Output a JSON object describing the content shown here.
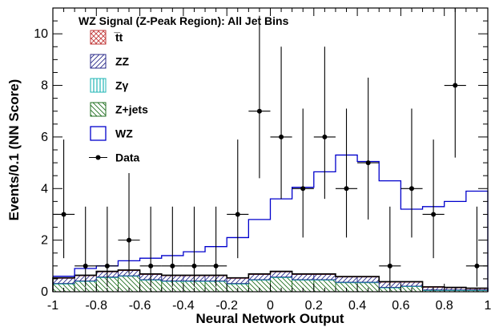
{
  "chart_data": {
    "type": "histogram",
    "title": "WZ Signal (Z-Peak Region): All Jet Bins",
    "xlabel": "Neural Network Output",
    "ylabel": "Events/0.1 (NN Score)",
    "xlim": [
      -1,
      1
    ],
    "ylim": [
      0,
      11
    ],
    "x_ticks": [
      "-1",
      "-0.8",
      "-0.6",
      "-0.4",
      "-0.2",
      "0",
      "0.2",
      "0.4",
      "0.6",
      "0.8",
      "1"
    ],
    "y_ticks": [
      "0",
      "2",
      "4",
      "6",
      "8",
      "10"
    ],
    "bin_width": 0.1,
    "bin_edges": [
      -1.0,
      -0.9,
      -0.8,
      -0.7,
      -0.6,
      -0.5,
      -0.4,
      -0.3,
      -0.2,
      -0.1,
      0.0,
      0.1,
      0.2,
      0.3,
      0.4,
      0.5,
      0.6,
      0.7,
      0.8,
      0.9,
      1.0
    ],
    "stacked_series": [
      {
        "name": "Z+jets",
        "color": "#1f6e1f",
        "hatch": "diag-left",
        "values": [
          0.3,
          0.4,
          0.55,
          0.6,
          0.45,
          0.4,
          0.4,
          0.4,
          0.3,
          0.45,
          0.55,
          0.45,
          0.45,
          0.35,
          0.35,
          0.15,
          0.2,
          0.05,
          0.05,
          0.05
        ]
      },
      {
        "name": "Zγ",
        "color": "#1fb5b5",
        "hatch": "vertical",
        "values": [
          0.02,
          0.02,
          0.02,
          0.02,
          0.02,
          0.02,
          0.02,
          0.02,
          0.02,
          0.02,
          0.02,
          0.02,
          0.02,
          0.02,
          0.02,
          0.02,
          0.02,
          0.02,
          0.02,
          0.02
        ]
      },
      {
        "name": "ZZ",
        "color": "#2a2a8a",
        "hatch": "diag-right",
        "values": [
          0.2,
          0.2,
          0.2,
          0.2,
          0.2,
          0.2,
          0.2,
          0.2,
          0.2,
          0.2,
          0.2,
          0.2,
          0.2,
          0.2,
          0.2,
          0.2,
          0.15,
          0.1,
          0.08,
          0.05
        ]
      },
      {
        "name": "t̅t",
        "color": "#c23a3a",
        "hatch": "cross",
        "values": [
          0.02,
          0.02,
          0.02,
          0.02,
          0.02,
          0.02,
          0.02,
          0.02,
          0.02,
          0.02,
          0.02,
          0.02,
          0.02,
          0.02,
          0.02,
          0.02,
          0.02,
          0.02,
          0.02,
          0.02
        ]
      }
    ],
    "signal_series": {
      "name": "WZ",
      "color": "#0000cc",
      "values": [
        0.6,
        0.9,
        1.0,
        1.2,
        1.3,
        1.4,
        1.55,
        1.75,
        2.1,
        2.8,
        3.6,
        4.05,
        4.65,
        5.3,
        5.05,
        4.3,
        3.2,
        3.3,
        3.5,
        3.9
      ]
    },
    "data_series": {
      "name": "Data",
      "x": [
        -0.95,
        -0.85,
        -0.75,
        -0.65,
        -0.55,
        -0.45,
        -0.35,
        -0.25,
        -0.15,
        -0.05,
        0.05,
        0.15,
        0.25,
        0.35,
        0.45,
        0.55,
        0.65,
        0.75,
        0.85,
        0.95
      ],
      "y": [
        3,
        1,
        1,
        2,
        1,
        1,
        1,
        1,
        3,
        7,
        6,
        4,
        6,
        4,
        5,
        1,
        4,
        3,
        8,
        1
      ],
      "err_low": [
        1.7,
        0.8,
        0.8,
        1.3,
        0.8,
        0.8,
        0.8,
        0.8,
        1.7,
        2.6,
        2.4,
        1.9,
        2.4,
        1.9,
        2.2,
        0.8,
        1.9,
        1.7,
        2.8,
        0.8
      ],
      "err_high": [
        2.9,
        2.3,
        2.3,
        2.6,
        2.3,
        2.3,
        2.3,
        2.3,
        2.9,
        3.7,
        3.5,
        3.1,
        3.5,
        3.1,
        3.3,
        2.3,
        3.1,
        2.9,
        3.8,
        2.3
      ]
    },
    "legend": {
      "placement": "top-left",
      "entries": [
        "t̅t",
        "ZZ",
        "Zγ",
        "Z+jets",
        "WZ",
        "Data"
      ]
    },
    "grid": false
  }
}
